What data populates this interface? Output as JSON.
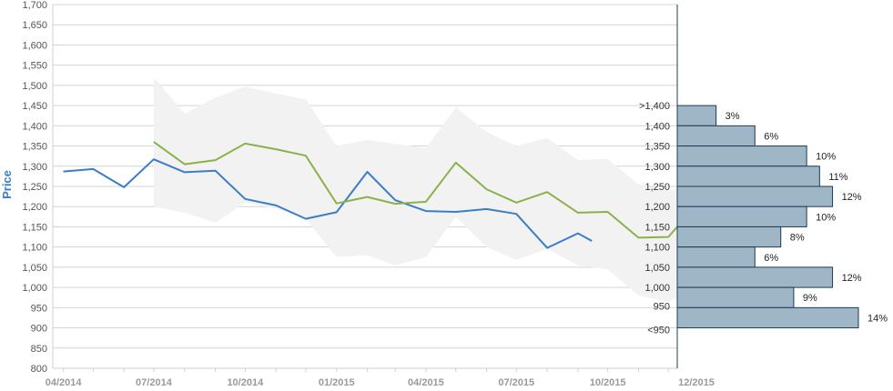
{
  "chart_data": {
    "type": "line",
    "title": "",
    "xlabel": "",
    "ylabel": "Price",
    "ylim": [
      800,
      1700
    ],
    "yticks": [
      800,
      850,
      900,
      950,
      1000,
      1050,
      1100,
      1150,
      1200,
      1250,
      1300,
      1350,
      1400,
      1450,
      1500,
      1550,
      1600,
      1650,
      1700
    ],
    "ytick_labels": [
      "800",
      "850",
      "900",
      "950",
      "1,000",
      "1,050",
      "1,100",
      "1,150",
      "1,200",
      "1,250",
      "1,300",
      "1,350",
      "1,400",
      "1,450",
      "1,500",
      "1,550",
      "1,600",
      "1,650",
      "1,700"
    ],
    "xlim": [
      "2014-03-25",
      "2015-12-10"
    ],
    "xticks": [
      "2014-04-01",
      "2014-07-01",
      "2014-10-01",
      "2015-01-01",
      "2015-04-01",
      "2015-07-01",
      "2015-10-01",
      "2015-12-31"
    ],
    "xtick_labels": [
      "04/2014",
      "07/2014",
      "10/2014",
      "01/2015",
      "04/2015",
      "07/2015",
      "10/2015",
      "12/2015"
    ],
    "grid": true,
    "legend": "none",
    "colors": {
      "actual": "#3a7dc9",
      "forecast": "#8db14a",
      "band": "#f2f2f2",
      "bars": "#9fb6c6",
      "bar_edge": "#1f3a56"
    },
    "series": [
      {
        "values": [
          [
            "2014-04-01",
            1287
          ],
          [
            "2014-05-01",
            1293
          ],
          [
            "2014-06-01",
            1248
          ],
          [
            "2014-07-01",
            1317
          ],
          [
            "2014-08-01",
            1285
          ],
          [
            "2014-09-01",
            1289
          ],
          [
            "2014-10-01",
            1219
          ],
          [
            "2014-11-01",
            1203
          ],
          [
            "2014-12-01",
            1170
          ],
          [
            "2015-01-01",
            1186
          ],
          [
            "2015-02-01",
            1286
          ],
          [
            "2015-03-01",
            1216
          ],
          [
            "2015-04-01",
            1189
          ],
          [
            "2015-05-01",
            1187
          ],
          [
            "2015-06-01",
            1194
          ],
          [
            "2015-07-01",
            1182
          ],
          [
            "2015-08-01",
            1098
          ],
          [
            "2015-09-01",
            1134
          ],
          [
            "2015-09-15",
            1115
          ]
        ]
      },
      {
        "values": [
          [
            "2014-07-01",
            1360
          ],
          [
            "2014-08-01",
            1305
          ],
          [
            "2014-09-01",
            1315
          ],
          [
            "2014-10-01",
            1356
          ],
          [
            "2014-11-01",
            1342
          ],
          [
            "2014-12-01",
            1326
          ],
          [
            "2015-01-01",
            1208
          ],
          [
            "2015-02-01",
            1224
          ],
          [
            "2015-03-01",
            1207
          ],
          [
            "2015-04-01",
            1212
          ],
          [
            "2015-05-01",
            1309
          ],
          [
            "2015-06-01",
            1243
          ],
          [
            "2015-07-01",
            1210
          ],
          [
            "2015-08-01",
            1236
          ],
          [
            "2015-09-01",
            1185
          ],
          [
            "2015-10-01",
            1187
          ],
          [
            "2015-11-01",
            1123
          ],
          [
            "2015-12-01",
            1125
          ],
          [
            "2015-12-10",
            1150
          ]
        ]
      }
    ],
    "band": [
      [
        "2014-07-01",
        1520,
        1200
      ],
      [
        "2014-08-01",
        1430,
        1185
      ],
      [
        "2014-09-01",
        1470,
        1160
      ],
      [
        "2014-10-01",
        1497,
        1210
      ],
      [
        "2014-11-01",
        1480,
        1195
      ],
      [
        "2014-12-01",
        1465,
        1170
      ],
      [
        "2015-01-01",
        1350,
        1075
      ],
      [
        "2015-02-01",
        1365,
        1080
      ],
      [
        "2015-03-01",
        1355,
        1055
      ],
      [
        "2015-04-01",
        1345,
        1075
      ],
      [
        "2015-05-01",
        1445,
        1175
      ],
      [
        "2015-06-01",
        1385,
        1100
      ],
      [
        "2015-07-01",
        1350,
        1068
      ],
      [
        "2015-08-01",
        1370,
        1095
      ],
      [
        "2015-09-01",
        1315,
        1055
      ],
      [
        "2015-10-01",
        1318,
        1045
      ],
      [
        "2015-11-01",
        1255,
        980
      ],
      [
        "2015-12-01",
        1240,
        965
      ],
      [
        "2015-12-10",
        1245,
        975
      ]
    ],
    "histogram": {
      "type": "bar",
      "orientation": "horizontal",
      "xlim": [
        0,
        14
      ],
      "bins": [
        {
          "label": ">1,400",
          "low": 1400,
          "high": 1450,
          "value": 3,
          "value_label": "3%"
        },
        {
          "label": "1,400",
          "low": 1350,
          "high": 1400,
          "value": 6,
          "value_label": "6%"
        },
        {
          "label": "1,350",
          "low": 1300,
          "high": 1350,
          "value": 10,
          "value_label": "10%"
        },
        {
          "label": "1,300",
          "low": 1250,
          "high": 1300,
          "value": 11,
          "value_label": "11%"
        },
        {
          "label": "1,250",
          "low": 1200,
          "high": 1250,
          "value": 12,
          "value_label": "12%"
        },
        {
          "label": "1,200",
          "low": 1150,
          "high": 1200,
          "value": 10,
          "value_label": "10%"
        },
        {
          "label": "1,150",
          "low": 1100,
          "high": 1150,
          "value": 8,
          "value_label": "8%"
        },
        {
          "label": "1,100",
          "low": 1050,
          "high": 1100,
          "value": 6,
          "value_label": "6%"
        },
        {
          "label": "1,050",
          "low": 1000,
          "high": 1050,
          "value": 12,
          "value_label": "12%"
        },
        {
          "label": "1,000",
          "low": 950,
          "high": 1000,
          "value": 9,
          "value_label": "9%"
        },
        {
          "label": "950",
          "low": 900,
          "high": 950,
          "value": 14,
          "value_label": "14%"
        },
        {
          "label": "<950",
          "low": 900,
          "high": 900,
          "value": 0,
          "value_label": ""
        }
      ]
    }
  }
}
